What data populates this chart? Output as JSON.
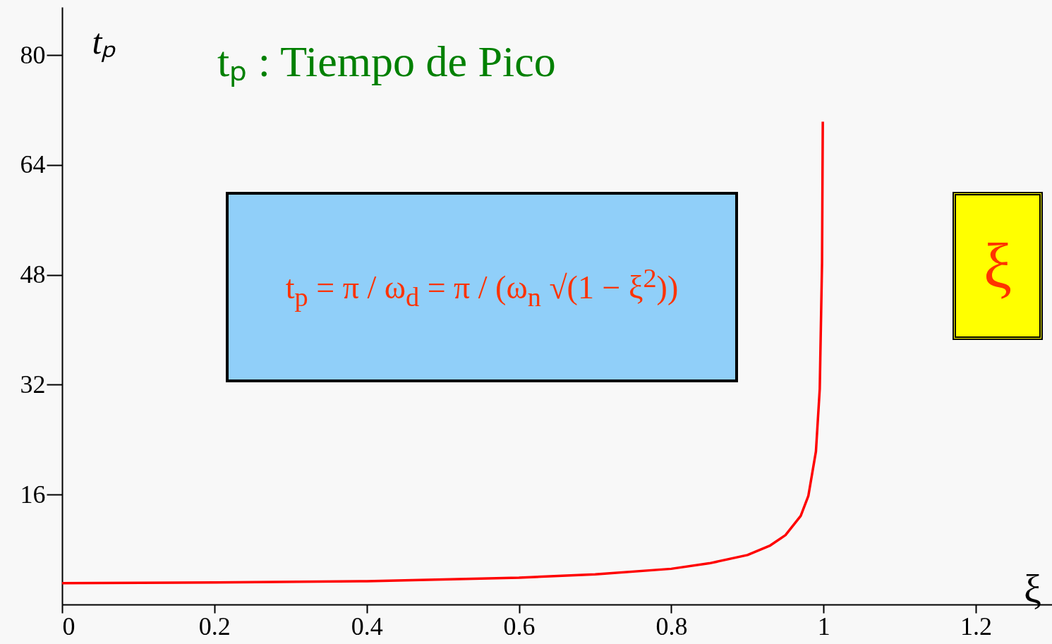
{
  "chart_data": {
    "type": "line",
    "title": "tₚ : Tiempo de Pico",
    "xlabel": "ξ",
    "ylabel": "tₚ",
    "annotations": [
      "t$_{p}$ = π / ω$_{d}$ = π / (ω$_{n}$ √(1 − ξ$^{2}$))",
      "ξ"
    ],
    "x": [
      0,
      0.2,
      0.4,
      0.6,
      0.7,
      0.8,
      0.85,
      0.9,
      0.93,
      0.95,
      0.97,
      0.98,
      0.99,
      0.995,
      0.998,
      0.999
    ],
    "series": [
      {
        "color": "#ff0000",
        "values": [
          3.1,
          3.2,
          3.4,
          3.9,
          4.4,
          5.2,
          6,
          7.2,
          8.6,
          10.1,
          12.9,
          15.8,
          22.3,
          31.4,
          49.7,
          70.3
        ]
      }
    ],
    "line_style": "solid",
    "xlim": [
      0,
      1.3
    ],
    "ylim": [
      0,
      87
    ],
    "xticks": [
      0,
      0.2,
      0.4,
      0.6,
      0.8,
      1,
      1.2
    ],
    "yticks": [
      16,
      32,
      48,
      64,
      80
    ]
  }
}
